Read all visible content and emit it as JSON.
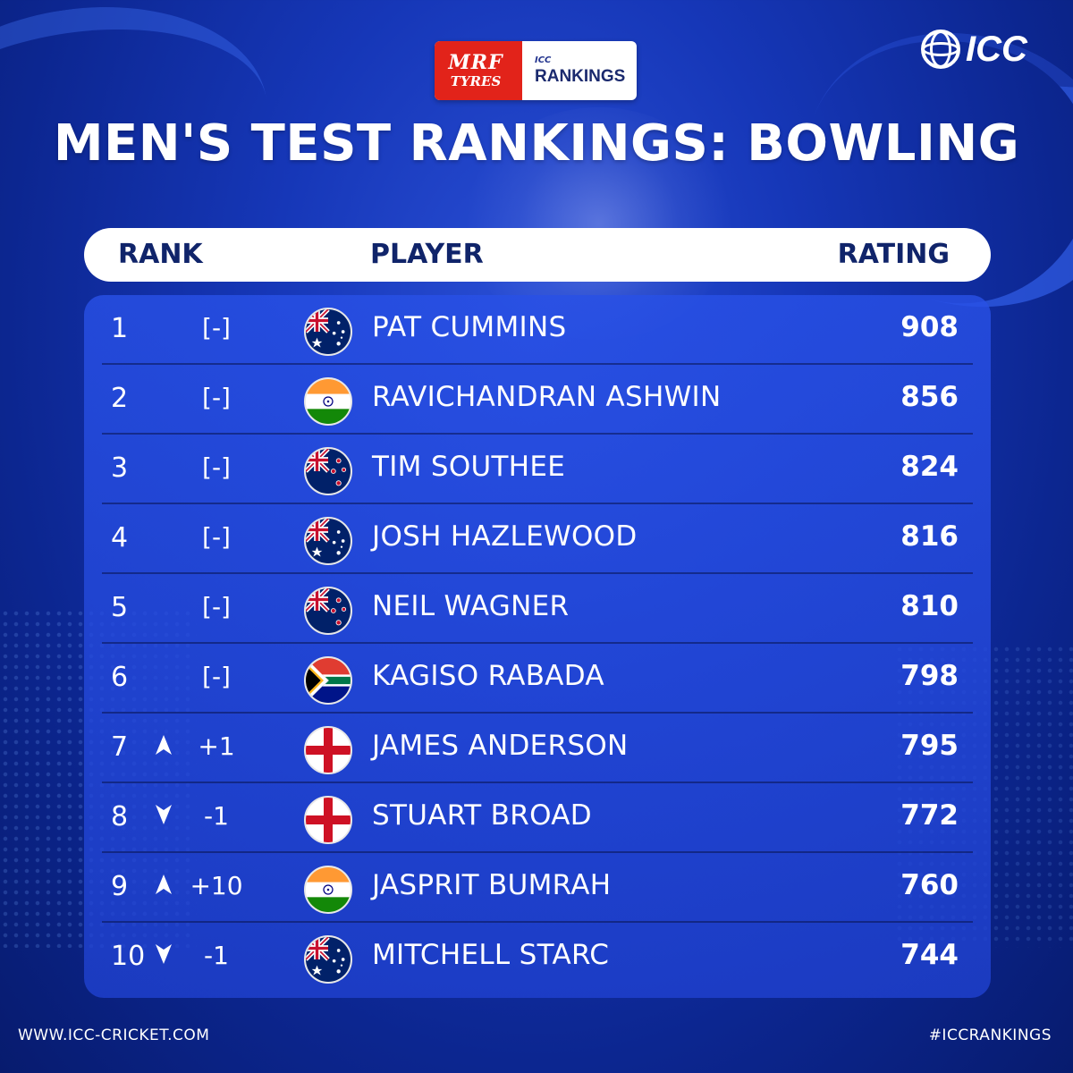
{
  "sponsor": {
    "mrf_line1": "MRF",
    "mrf_line2": "TYRES",
    "icc_small": "ICC",
    "rankings": "RANKINGS"
  },
  "brand": {
    "logo_text": "ICC"
  },
  "title": "MEN'S TEST RANKINGS: BOWLING",
  "table": {
    "headers": {
      "rank": "RANK",
      "player": "PLAYER",
      "rating": "RATING"
    },
    "rows": [
      {
        "rank": "1",
        "movement": "[-]",
        "direction": "none",
        "flag": "australia-flag-icon",
        "player": "PAT CUMMINS",
        "rating": "908"
      },
      {
        "rank": "2",
        "movement": "[-]",
        "direction": "none",
        "flag": "india-flag-icon",
        "player": "RAVICHANDRAN ASHWIN",
        "rating": "856"
      },
      {
        "rank": "3",
        "movement": "[-]",
        "direction": "none",
        "flag": "new-zealand-flag-icon",
        "player": "TIM SOUTHEE",
        "rating": "824"
      },
      {
        "rank": "4",
        "movement": "[-]",
        "direction": "none",
        "flag": "australia-flag-icon",
        "player": "JOSH HAZLEWOOD",
        "rating": "816"
      },
      {
        "rank": "5",
        "movement": "[-]",
        "direction": "none",
        "flag": "new-zealand-flag-icon",
        "player": "NEIL WAGNER",
        "rating": "810"
      },
      {
        "rank": "6",
        "movement": "[-]",
        "direction": "none",
        "flag": "south-africa-flag-icon",
        "player": "KAGISO RABADA",
        "rating": "798"
      },
      {
        "rank": "7",
        "movement": "+1",
        "direction": "up",
        "flag": "england-flag-icon",
        "player": "JAMES ANDERSON",
        "rating": "795"
      },
      {
        "rank": "8",
        "movement": "-1",
        "direction": "down",
        "flag": "england-flag-icon",
        "player": "STUART BROAD",
        "rating": "772"
      },
      {
        "rank": "9",
        "movement": "+10",
        "direction": "up",
        "flag": "india-flag-icon",
        "player": "JASPRIT BUMRAH",
        "rating": "760"
      },
      {
        "rank": "10",
        "movement": "-1",
        "direction": "down",
        "flag": "australia-flag-icon",
        "player": "MITCHELL STARC",
        "rating": "744"
      }
    ]
  },
  "footer": {
    "website": "WWW.ICC-CRICKET.COM",
    "hashtag": "#ICCRANKINGS"
  },
  "colors": {
    "background": "#1637b8",
    "panel": "#2850e6",
    "header_text": "#10246a",
    "mrf_red": "#e2231a"
  }
}
